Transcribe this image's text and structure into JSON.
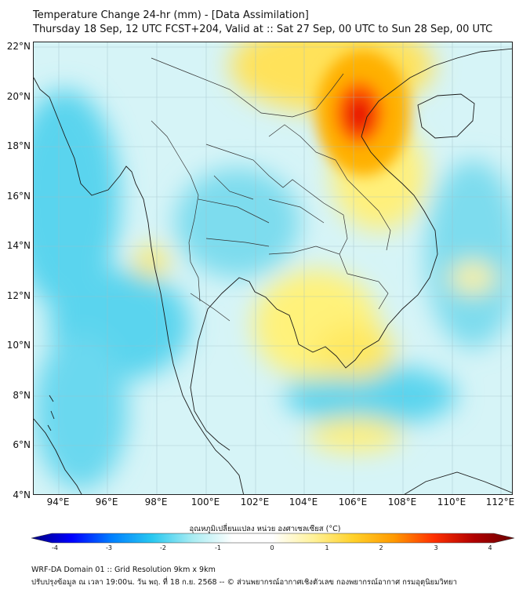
{
  "header": {
    "title": "Temperature Change 24-hr (mm) - [Data Assimilation]",
    "subtitle": "Thursday 18 Sep, 12 UTC FCST+204, Valid at :: Sat 27 Sep, 00 UTC to Sun 28 Sep, 00 UTC"
  },
  "map": {
    "lat_labels": [
      "22°N",
      "20°N",
      "18°N",
      "16°N",
      "14°N",
      "12°N",
      "10°N",
      "8°N",
      "6°N",
      "4°N"
    ],
    "lon_labels": [
      "94°E",
      "96°E",
      "98°E",
      "100°E",
      "102°E",
      "104°E",
      "106°E",
      "108°E",
      "110°E",
      "112°E"
    ],
    "extent": {
      "lon_min": 93.0,
      "lon_max": 112.5,
      "lat_min": 4.0,
      "lat_max": 22.2
    },
    "regions": [
      {
        "name": "north-vietnam-hotspot",
        "level": 3.2
      },
      {
        "name": "south-china-warm",
        "level": 1.4
      },
      {
        "name": "north-laos-warm",
        "level": 1.0
      },
      {
        "name": "gulf-of-thailand-warm",
        "level": 0.8
      },
      {
        "name": "mekong-delta-warm",
        "level": 1.0
      },
      {
        "name": "andaman-sea-cool",
        "level": -1.4
      },
      {
        "name": "bay-of-bengal-cool",
        "level": -1.2
      },
      {
        "name": "malay-sea-cool",
        "level": -1.3
      }
    ]
  },
  "colorbar": {
    "caption": "อุณหภูมิเปลี่ยนแปลง หน่วย องศาเซลเซียส (°C)",
    "ticks": [
      "-4",
      "-3",
      "-2",
      "-1",
      "0",
      "1",
      "2",
      "3",
      "4"
    ],
    "min": -4,
    "max": 4,
    "colors": [
      "#00007f",
      "#0000ff",
      "#0080ff",
      "#28c8f0",
      "#a8ecf2",
      "#ffffff",
      "#ffffff",
      "#fff29a",
      "#ffd12a",
      "#ff9a00",
      "#ff3000",
      "#b00000",
      "#6a0000"
    ]
  },
  "footer": {
    "line1": "WRF-DA Domain 01 :: Grid Resolution 9km x 9km",
    "line2": "ปรับปรุงข้อมูล ณ เวลา 19:00น. วัน พฤ. ที่ 18 ก.ย. 2568 -- © ส่วนพยากรณ์อากาศเชิงตัวเลข กองพยากรณ์อากาศ กรมอุตุนิยมวิทยา"
  }
}
